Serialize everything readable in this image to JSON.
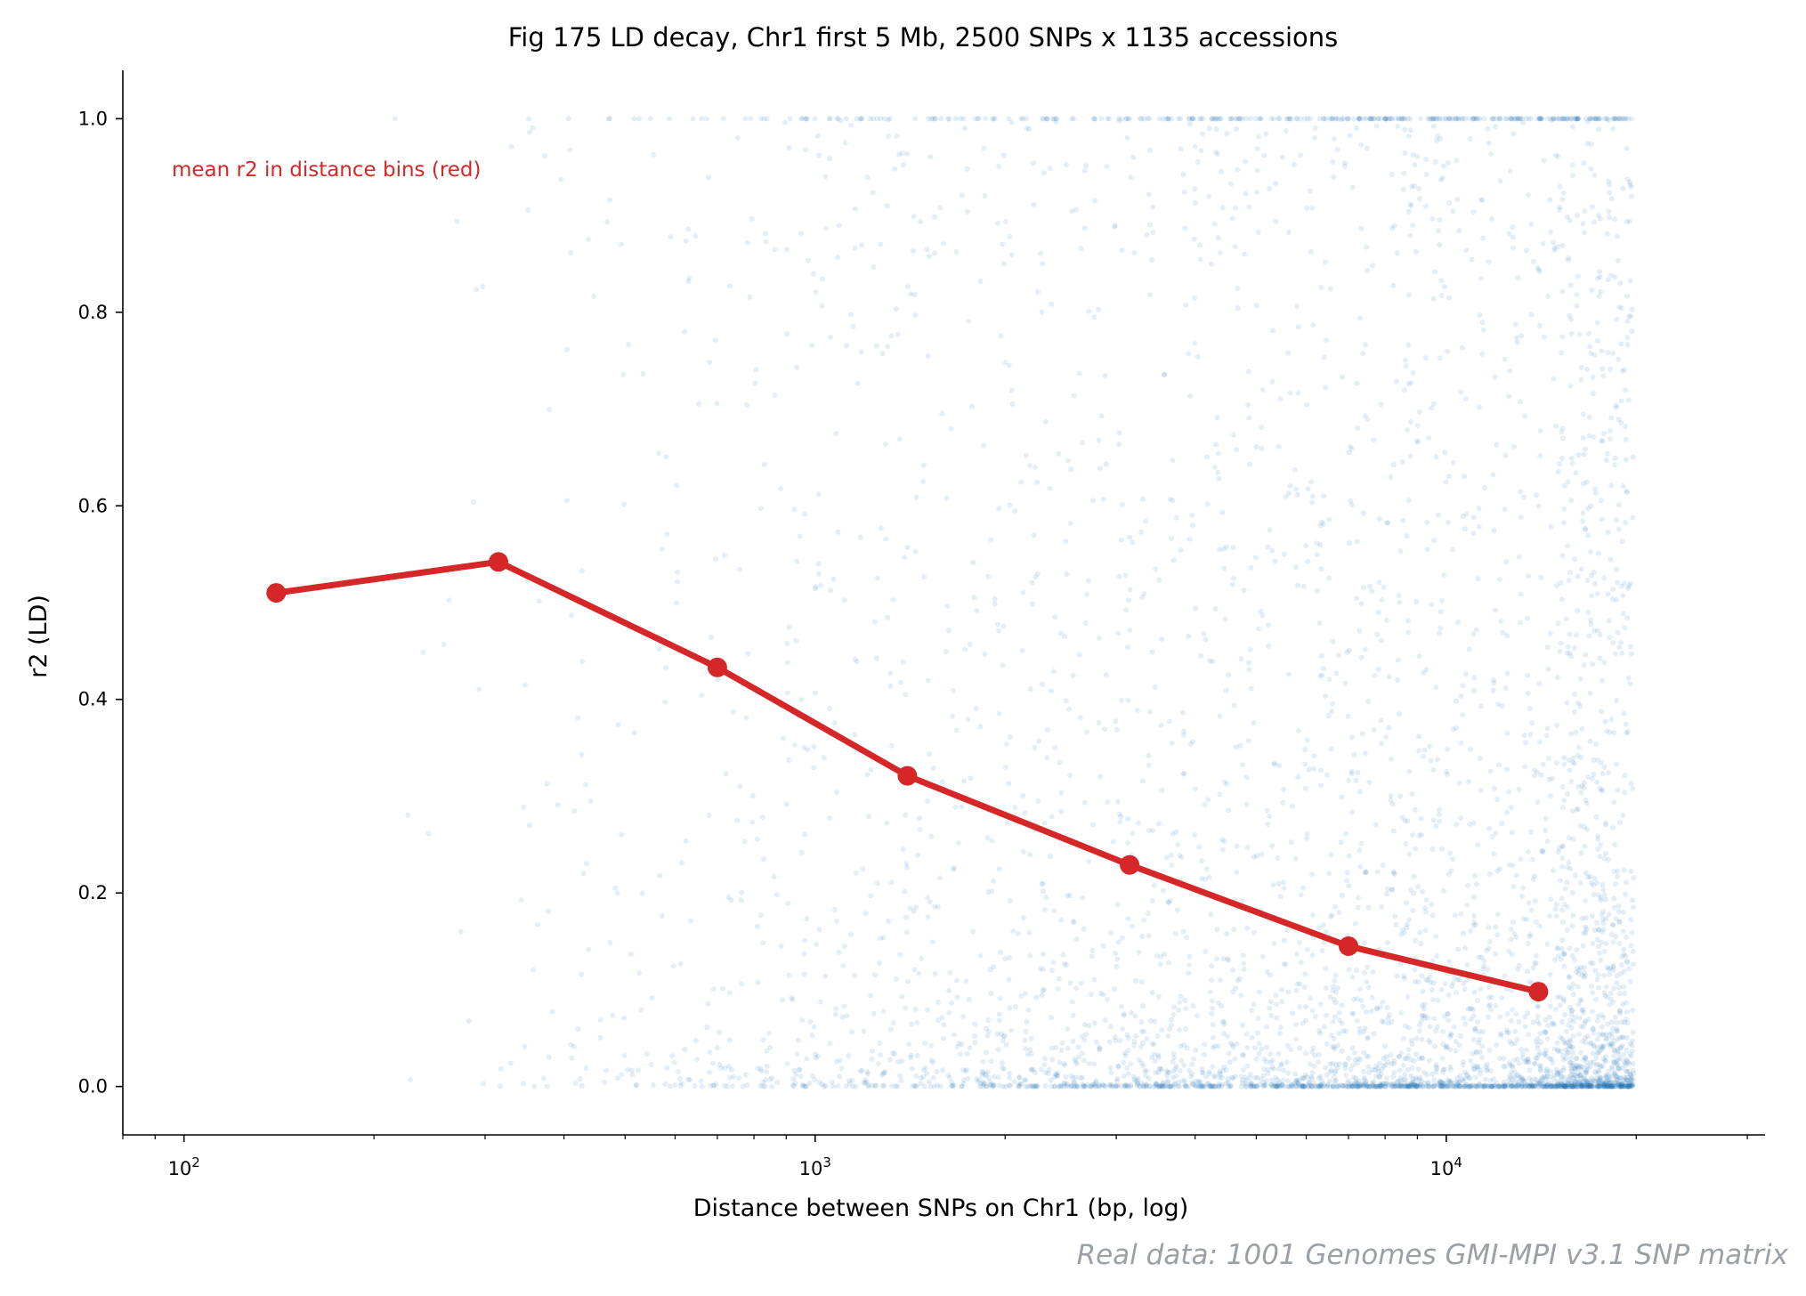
{
  "chart_data": {
    "type": "scatter",
    "title": "Fig 175  LD decay, Chr1 first 5 Mb, 2500 SNPs x 1135 accessions",
    "xlabel": "Distance between SNPs on Chr1 (bp, log)",
    "ylabel": "r2 (LD)",
    "x_scale": "log",
    "xlim": [
      80,
      32000
    ],
    "ylim": [
      -0.05,
      1.05
    ],
    "x_ticks": [
      {
        "base": "10",
        "exp": "2",
        "value": 100
      },
      {
        "base": "10",
        "exp": "3",
        "value": 1000
      },
      {
        "base": "10",
        "exp": "4",
        "value": 10000
      }
    ],
    "y_ticks": [
      "0.0",
      "0.2",
      "0.4",
      "0.6",
      "0.8",
      "1.0"
    ],
    "grid": false,
    "series": [
      {
        "kind": "scatter",
        "color": "#1f77b4",
        "opacity": 0.12,
        "note": "pairwise SNP r2 cloud, dense near 0 at large distances"
      },
      {
        "kind": "line",
        "color": "#d62728",
        "x": [
          140,
          315,
          700,
          1400,
          3150,
          7000,
          14000
        ],
        "y": [
          0.51,
          0.542,
          0.433,
          0.321,
          0.229,
          0.145,
          0.098
        ]
      }
    ],
    "annotation": {
      "text": "mean r2 in distance bins (red)",
      "color": "#d62728"
    },
    "source_note": "Real data: 1001 Genomes GMI-MPI v3.1 SNP matrix"
  }
}
